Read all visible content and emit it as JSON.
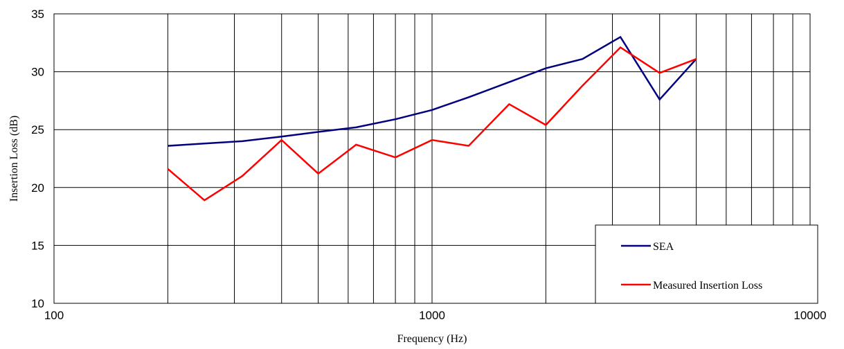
{
  "chart_data": {
    "type": "line",
    "xscale": "log",
    "xlim": [
      100,
      10000
    ],
    "ylim": [
      10,
      35
    ],
    "xlabel": "Frequency (Hz)",
    "ylabel": "Insertion Loss (dB)",
    "x_ticks": [
      "100",
      "1000",
      "10000"
    ],
    "y_ticks": [
      "10",
      "15",
      "20",
      "25",
      "30",
      "35"
    ],
    "grid": true,
    "legend_position": "bottom-right",
    "x": [
      200,
      250,
      315,
      400,
      500,
      630,
      800,
      1000,
      1250,
      1600,
      2000,
      2500,
      3150,
      4000,
      5000
    ],
    "series": [
      {
        "name": "SEA",
        "color": "#000080",
        "values": [
          23.6,
          23.8,
          24.0,
          24.4,
          24.8,
          25.2,
          25.9,
          26.7,
          27.8,
          29.1,
          30.3,
          31.1,
          33.0,
          27.6,
          31.1
        ]
      },
      {
        "name": "Measured Insertion Loss",
        "color": "#ff0000",
        "values": [
          21.6,
          18.9,
          21.0,
          24.1,
          21.2,
          23.7,
          22.6,
          24.1,
          23.6,
          27.2,
          25.4,
          28.8,
          32.1,
          29.9,
          31.1
        ]
      }
    ]
  }
}
